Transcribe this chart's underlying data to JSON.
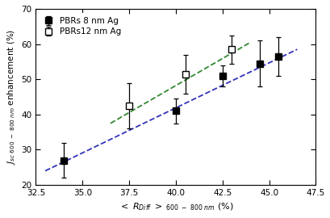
{
  "series1_name": "PBRs 8 nm Ag",
  "series2_name": "PBRs12 nm Ag",
  "series1_x": [
    34.0,
    40.0,
    42.5,
    44.5,
    45.5
  ],
  "series1_y": [
    27.0,
    41.0,
    51.0,
    54.5,
    56.5
  ],
  "series1_yerr": [
    5.0,
    3.5,
    3.0,
    6.5,
    5.5
  ],
  "series2_x": [
    37.5,
    40.5,
    43.0
  ],
  "series2_y": [
    42.5,
    51.5,
    58.5
  ],
  "series2_yerr": [
    6.5,
    5.5,
    4.0
  ],
  "fit1_x": [
    33.0,
    46.5
  ],
  "fit1_y": [
    24.0,
    58.5
  ],
  "fit2_x": [
    36.5,
    44.0
  ],
  "fit2_y": [
    37.5,
    60.5
  ],
  "xlim": [
    32.5,
    47.5
  ],
  "ylim": [
    20,
    70
  ],
  "xticks": [
    32.5,
    35.0,
    37.5,
    40.0,
    42.5,
    45.0,
    47.5
  ],
  "yticks": [
    20,
    30,
    40,
    50,
    60,
    70
  ],
  "fit1_color": "#3333bb",
  "fit2_color": "#338833",
  "bg_color": "#ffffff",
  "marker_size": 5.5
}
